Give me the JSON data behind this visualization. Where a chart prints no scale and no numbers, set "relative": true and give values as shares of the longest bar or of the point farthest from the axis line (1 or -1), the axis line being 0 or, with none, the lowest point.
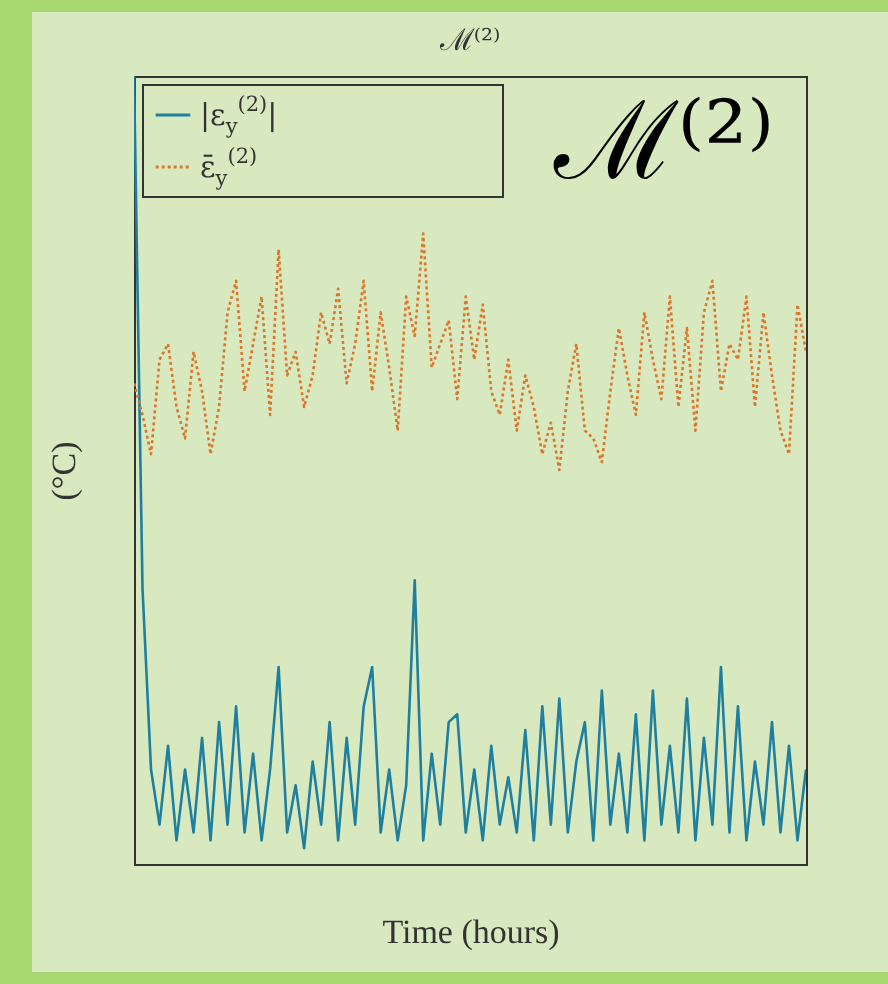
{
  "chart_data": {
    "type": "line",
    "title": "ℳ⁽²⁾",
    "xlabel": "Time (hours)",
    "ylabel": "(°C)",
    "relative": true,
    "tick_labels": false,
    "legend": "top left",
    "annotations": [
      "ℳ⁽²⁾"
    ],
    "categories": [
      null,
      null,
      null,
      null,
      null,
      null,
      null,
      null,
      null,
      null,
      null,
      null,
      null,
      null,
      null,
      null,
      null,
      null,
      null,
      null,
      null,
      null,
      null,
      null,
      null,
      null,
      null,
      null,
      null,
      null,
      null,
      null,
      null,
      null,
      null,
      null,
      null,
      null,
      null,
      null,
      null,
      null,
      null,
      null,
      null,
      null,
      null,
      null,
      null,
      null,
      null,
      null,
      null,
      null,
      null,
      null,
      null,
      null,
      null,
      null,
      null,
      null,
      null,
      null,
      null,
      null,
      null,
      null,
      null,
      null,
      null,
      null,
      null,
      null,
      null,
      null,
      null,
      null,
      null,
      null
    ],
    "series": [
      {
        "name": "|ε$_{y}$$^{(2)}$|",
        "color": "#1f7f9f",
        "line_style": "solid",
        "values": [
          1.0,
          0.35,
          0.12,
          0.05,
          0.15,
          0.03,
          0.12,
          0.04,
          0.16,
          0.03,
          0.18,
          0.05,
          0.2,
          0.04,
          0.14,
          0.03,
          0.12,
          0.25,
          0.04,
          0.1,
          0.02,
          0.13,
          0.05,
          0.18,
          0.03,
          0.16,
          0.05,
          0.2,
          0.25,
          0.04,
          0.12,
          0.03,
          0.1,
          0.36,
          0.03,
          0.14,
          0.05,
          0.18,
          0.19,
          0.04,
          0.12,
          0.03,
          0.15,
          0.05,
          0.11,
          0.04,
          0.17,
          0.03,
          0.2,
          0.05,
          0.21,
          0.04,
          0.13,
          0.18,
          0.03,
          0.22,
          0.05,
          0.14,
          0.04,
          0.19,
          0.03,
          0.22,
          0.05,
          0.15,
          0.04,
          0.21,
          0.03,
          0.16,
          0.05,
          0.25,
          0.04,
          0.2,
          0.03,
          0.13,
          0.05,
          0.18,
          0.04,
          0.15,
          0.03,
          0.12
        ]
      },
      {
        "name": "ε̄$_{y}$$^{(2)}$",
        "color": "#d9772a",
        "line_style": "dotted",
        "values": [
          0.61,
          0.57,
          0.52,
          0.64,
          0.66,
          0.58,
          0.54,
          0.65,
          0.6,
          0.52,
          0.58,
          0.7,
          0.74,
          0.6,
          0.66,
          0.72,
          0.57,
          0.78,
          0.62,
          0.65,
          0.58,
          0.62,
          0.7,
          0.66,
          0.73,
          0.61,
          0.66,
          0.74,
          0.6,
          0.7,
          0.63,
          0.55,
          0.72,
          0.67,
          0.8,
          0.63,
          0.66,
          0.69,
          0.59,
          0.72,
          0.64,
          0.71,
          0.6,
          0.57,
          0.64,
          0.55,
          0.62,
          0.58,
          0.52,
          0.56,
          0.5,
          0.6,
          0.66,
          0.55,
          0.54,
          0.51,
          0.6,
          0.68,
          0.62,
          0.57,
          0.7,
          0.64,
          0.59,
          0.72,
          0.58,
          0.68,
          0.55,
          0.7,
          0.74,
          0.6,
          0.66,
          0.64,
          0.72,
          0.58,
          0.7,
          0.62,
          0.55,
          0.52,
          0.71,
          0.65
        ]
      }
    ]
  }
}
